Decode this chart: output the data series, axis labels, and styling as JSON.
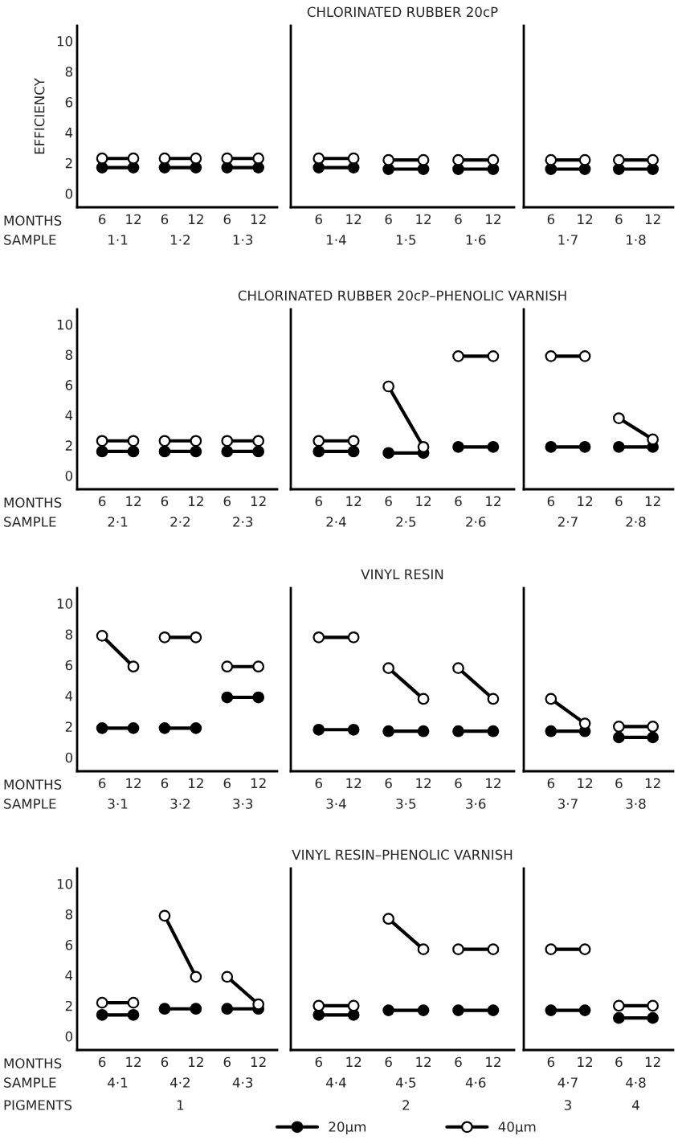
{
  "chart_data": [
    {
      "type": "line",
      "ylabel": "EFFICIENCY",
      "xlabel": "MONTHS",
      "categories": [
        "6",
        "12",
        "6",
        "12",
        "6",
        "12"
      ],
      "marker": "circle",
      "ylim": [
        -0.9,
        11
      ],
      "yticks": [
        0,
        2,
        4,
        6,
        8,
        10
      ],
      "series": [
        {
          "color": "#000000",
          "colors": [
            "#000000",
            "#000000",
            "#000000",
            "#000000",
            "#000000",
            "#000000"
          ],
          "values": [
            1.7,
            1.7,
            1.7,
            1.7,
            1.7,
            1.7
          ]
        },
        {
          "color": "#000000",
          "colors": [
            "#ffffff",
            "#ffffff",
            "#ffffff",
            "#ffffff",
            "#ffffff",
            "#ffffff"
          ],
          "values": [
            2.3,
            2.3,
            2.3,
            2.3,
            2.3,
            2.3
          ]
        }
      ],
      "annotations": [
        "SAMPLE",
        "1·1",
        "1·2",
        "1·3"
      ]
    },
    {
      "type": "line",
      "title": "CHLORINATED RUBBER 20cP",
      "categories": [
        "6",
        "12",
        "6",
        "12",
        "6",
        "12"
      ],
      "marker": "circle",
      "ylim": [
        -0.9,
        11
      ],
      "tick_labels": "x",
      "series": [
        {
          "color": "#000000",
          "colors": [
            "#000000",
            "#000000",
            "#000000",
            "#000000",
            "#000000",
            "#000000"
          ],
          "values": [
            1.7,
            1.7,
            1.6,
            1.6,
            1.6,
            1.6
          ]
        },
        {
          "color": "#000000",
          "colors": [
            "#ffffff",
            "#ffffff",
            "#ffffff",
            "#ffffff",
            "#ffffff",
            "#ffffff"
          ],
          "values": [
            2.3,
            2.3,
            2.2,
            2.2,
            2.2,
            2.2
          ]
        }
      ],
      "annotations": [
        null,
        "1·4",
        "1·5",
        "1·6"
      ]
    },
    {
      "type": "line",
      "categories": [
        "6",
        "12",
        "6",
        "12"
      ],
      "marker": "circle",
      "ylim": [
        -0.9,
        11
      ],
      "tick_labels": "x",
      "series": [
        {
          "color": "#000000",
          "colors": [
            "#000000",
            "#000000",
            "#000000",
            "#000000"
          ],
          "values": [
            1.6,
            1.6,
            1.6,
            1.6
          ]
        },
        {
          "color": "#000000",
          "colors": [
            "#ffffff",
            "#ffffff",
            "#ffffff",
            "#ffffff"
          ],
          "values": [
            2.2,
            2.2,
            2.2,
            2.2
          ]
        }
      ],
      "annotations": [
        null,
        "1·7",
        "1·8"
      ]
    },
    {
      "type": "line",
      "xlabel": "MONTHS",
      "categories": [
        "6",
        "12",
        "6",
        "12",
        "6",
        "12"
      ],
      "marker": "circle",
      "ylim": [
        -0.9,
        11
      ],
      "yticks": [
        0,
        2,
        4,
        6,
        8,
        10
      ],
      "series": [
        {
          "color": "#000000",
          "colors": [
            "#000000",
            "#000000",
            "#000000",
            "#000000",
            "#000000",
            "#000000"
          ],
          "values": [
            1.6,
            1.6,
            1.6,
            1.6,
            1.6,
            1.6
          ]
        },
        {
          "color": "#000000",
          "colors": [
            "#ffffff",
            "#ffffff",
            "#ffffff",
            "#ffffff",
            "#ffffff",
            "#ffffff"
          ],
          "values": [
            2.3,
            2.3,
            2.3,
            2.3,
            2.3,
            2.3
          ]
        }
      ],
      "annotations": [
        "SAMPLE",
        "2·1",
        "2·2",
        "2·3"
      ]
    },
    {
      "type": "line",
      "title": "CHLORINATED RUBBER 20cP–PHENOLIC VARNISH",
      "categories": [
        "6",
        "12",
        "6",
        "12",
        "6",
        "12"
      ],
      "marker": "circle",
      "ylim": [
        -0.9,
        11
      ],
      "tick_labels": "x",
      "series": [
        {
          "color": "#000000",
          "colors": [
            "#000000",
            "#000000",
            "#000000",
            "#000000",
            "#000000",
            "#000000"
          ],
          "values": [
            1.6,
            1.6,
            1.5,
            1.5,
            1.9,
            1.9
          ]
        },
        {
          "color": "#000000",
          "colors": [
            "#ffffff",
            "#ffffff",
            "#ffffff",
            "#ffffff",
            "#ffffff",
            "#ffffff"
          ],
          "values": [
            2.3,
            2.3,
            5.9,
            1.9,
            7.9,
            7.9
          ]
        }
      ],
      "annotations": [
        null,
        "2·4",
        "2·5",
        "2·6"
      ]
    },
    {
      "type": "line",
      "categories": [
        "6",
        "12",
        "6",
        "12"
      ],
      "marker": "circle",
      "ylim": [
        -0.9,
        11
      ],
      "tick_labels": "x",
      "series": [
        {
          "color": "#000000",
          "colors": [
            "#000000",
            "#000000",
            "#000000",
            "#000000"
          ],
          "values": [
            1.9,
            1.9,
            1.9,
            1.9
          ]
        },
        {
          "color": "#000000",
          "colors": [
            "#ffffff",
            "#ffffff",
            "#ffffff",
            "#ffffff"
          ],
          "values": [
            7.9,
            7.9,
            3.8,
            2.4
          ]
        }
      ],
      "annotations": [
        null,
        "2·7",
        "2·8"
      ]
    },
    {
      "type": "line",
      "xlabel": "MONTHS",
      "categories": [
        "6",
        "12",
        "6",
        "12",
        "6",
        "12"
      ],
      "marker": "circle",
      "ylim": [
        -0.9,
        11
      ],
      "yticks": [
        0,
        2,
        4,
        6,
        8,
        10
      ],
      "series": [
        {
          "color": "#000000",
          "colors": [
            "#000000",
            "#000000",
            "#000000",
            "#000000",
            "#000000",
            "#000000"
          ],
          "values": [
            1.9,
            1.9,
            1.9,
            1.9,
            3.9,
            3.9
          ]
        },
        {
          "color": "#000000",
          "colors": [
            "#ffffff",
            "#ffffff",
            "#ffffff",
            "#ffffff",
            "#ffffff",
            "#ffffff"
          ],
          "values": [
            7.9,
            5.9,
            7.8,
            7.8,
            5.9,
            5.9
          ]
        }
      ],
      "annotations": [
        "SAMPLE",
        "3·1",
        "3·2",
        "3·3"
      ]
    },
    {
      "type": "line",
      "title": "VINYL RESIN",
      "categories": [
        "6",
        "12",
        "6",
        "12",
        "6",
        "12"
      ],
      "marker": "circle",
      "ylim": [
        -0.9,
        11
      ],
      "tick_labels": "x",
      "series": [
        {
          "color": "#000000",
          "colors": [
            "#000000",
            "#000000",
            "#000000",
            "#000000",
            "#000000",
            "#000000"
          ],
          "values": [
            1.8,
            1.8,
            1.7,
            1.7,
            1.7,
            1.7
          ]
        },
        {
          "color": "#000000",
          "colors": [
            "#ffffff",
            "#ffffff",
            "#ffffff",
            "#ffffff",
            "#ffffff",
            "#ffffff"
          ],
          "values": [
            7.8,
            7.8,
            5.8,
            3.8,
            5.8,
            3.8
          ]
        }
      ],
      "annotations": [
        null,
        "3·4",
        "3·5",
        "3·6"
      ]
    },
    {
      "type": "line",
      "categories": [
        "6",
        "12",
        "6",
        "12"
      ],
      "marker": "circle",
      "ylim": [
        -0.9,
        11
      ],
      "tick_labels": "x",
      "series": [
        {
          "color": "#000000",
          "colors": [
            "#000000",
            "#000000",
            "#000000",
            "#000000"
          ],
          "values": [
            1.7,
            1.7,
            1.3,
            1.3
          ]
        },
        {
          "color": "#000000",
          "colors": [
            "#ffffff",
            "#ffffff",
            "#ffffff",
            "#ffffff"
          ],
          "values": [
            3.8,
            2.2,
            2.0,
            2.0
          ]
        }
      ],
      "annotations": [
        null,
        "3·7",
        "3·8"
      ]
    },
    {
      "type": "line",
      "xlabel": "MONTHS",
      "categories": [
        "6",
        "12",
        "6",
        "12",
        "6",
        "12"
      ],
      "marker": "circle",
      "ylim": [
        -0.9,
        11
      ],
      "yticks": [
        0,
        2,
        4,
        6,
        8,
        10
      ],
      "series": [
        {
          "color": "#000000",
          "colors": [
            "#000000",
            "#000000",
            "#000000",
            "#000000",
            "#000000",
            "#000000"
          ],
          "values": [
            1.4,
            1.4,
            1.8,
            1.8,
            1.8,
            1.8
          ]
        },
        {
          "color": "#000000",
          "colors": [
            "#ffffff",
            "#ffffff",
            "#ffffff",
            "#ffffff",
            "#ffffff",
            "#ffffff"
          ],
          "values": [
            2.2,
            2.2,
            7.9,
            3.9,
            3.9,
            2.1
          ]
        }
      ],
      "annotations": [
        "SAMPLE",
        "4·1",
        "4·2",
        "4·3",
        "PIGMENTS",
        null,
        "1",
        null
      ]
    },
    {
      "type": "line",
      "title": "VINYL RESIN–PHENOLIC VARNISH",
      "categories": [
        "6",
        "12",
        "6",
        "12",
        "6",
        "12"
      ],
      "marker": "circle",
      "ylim": [
        -0.9,
        11
      ],
      "tick_labels": "x",
      "legend": "bottom",
      "series": [
        {
          "name": "20µm",
          "color": "#000000",
          "colors": [
            "#000000",
            "#000000",
            "#000000",
            "#000000",
            "#000000",
            "#000000"
          ],
          "values": [
            1.4,
            1.4,
            1.7,
            1.7,
            1.7,
            1.7
          ]
        },
        {
          "name": "40µm",
          "color": "#000000",
          "colors": [
            "#ffffff",
            "#ffffff",
            "#ffffff",
            "#ffffff",
            "#ffffff",
            "#ffffff"
          ],
          "values": [
            2.0,
            2.0,
            7.7,
            5.7,
            5.7,
            5.7
          ]
        }
      ],
      "annotations": [
        null,
        "4·4",
        "4·5",
        "4·6",
        null,
        null,
        "2",
        null
      ]
    },
    {
      "type": "line",
      "categories": [
        "6",
        "12",
        "6",
        "12"
      ],
      "marker": "circle",
      "ylim": [
        -0.9,
        11
      ],
      "tick_labels": "x",
      "series": [
        {
          "color": "#000000",
          "colors": [
            "#000000",
            "#000000",
            "#000000",
            "#000000"
          ],
          "values": [
            1.7,
            1.7,
            1.2,
            1.2
          ]
        },
        {
          "color": "#000000",
          "colors": [
            "#ffffff",
            "#ffffff",
            "#ffffff",
            "#ffffff"
          ],
          "values": [
            5.7,
            5.7,
            2.0,
            2.0
          ]
        }
      ],
      "annotations": [
        null,
        "4·7",
        "4·8",
        null,
        "3",
        "4"
      ]
    }
  ]
}
